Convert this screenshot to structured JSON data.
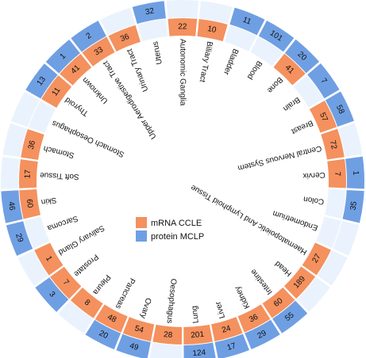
{
  "chart_data": {
    "type": "radial-bar",
    "categories": [
      "Autonomic Ganglia",
      "Biliary Tract",
      "Bladder",
      "Blood",
      "Bone",
      "Brain",
      "Breast",
      "Central Nervous System",
      "Cervix",
      "Colon",
      "Endometrium",
      "Haematopoietic And Lymphoid Tissue",
      "Head",
      "Intestine",
      "Kidney",
      "Liver",
      "Lung",
      "Oesophagus",
      "Ovary",
      "Pancreas",
      "Pleura",
      "Prostate",
      "Salivary Gland",
      "Sarcoma",
      "Skin",
      "Soft Tissue",
      "Stomach",
      "Stomach Oesophagus",
      "Thyroid",
      "Unknown",
      "Upper Aerodigestive Tract",
      "Urinary Tract",
      "Uterus"
    ],
    "series": [
      {
        "name": "mRNA CCLE",
        "color": "#f4915e",
        "values": [
          22,
          10,
          null,
          null,
          41,
          null,
          57,
          72,
          7,
          null,
          null,
          27,
          189,
          60,
          36,
          24,
          201,
          28,
          54,
          48,
          8,
          7,
          1,
          null,
          60,
          17,
          36,
          null,
          11,
          41,
          33,
          36,
          null
        ]
      },
      {
        "name": "protein MCLP",
        "color": "#6f9fe3",
        "values": [
          null,
          null,
          11,
          101,
          20,
          7,
          58,
          null,
          1,
          35,
          null,
          null,
          null,
          55,
          29,
          17,
          124,
          null,
          49,
          20,
          null,
          3,
          null,
          29,
          46,
          null,
          null,
          null,
          13,
          1,
          2,
          null,
          32
        ]
      }
    ],
    "legend": "center",
    "empty_ring_color": "#eaf3fd"
  }
}
